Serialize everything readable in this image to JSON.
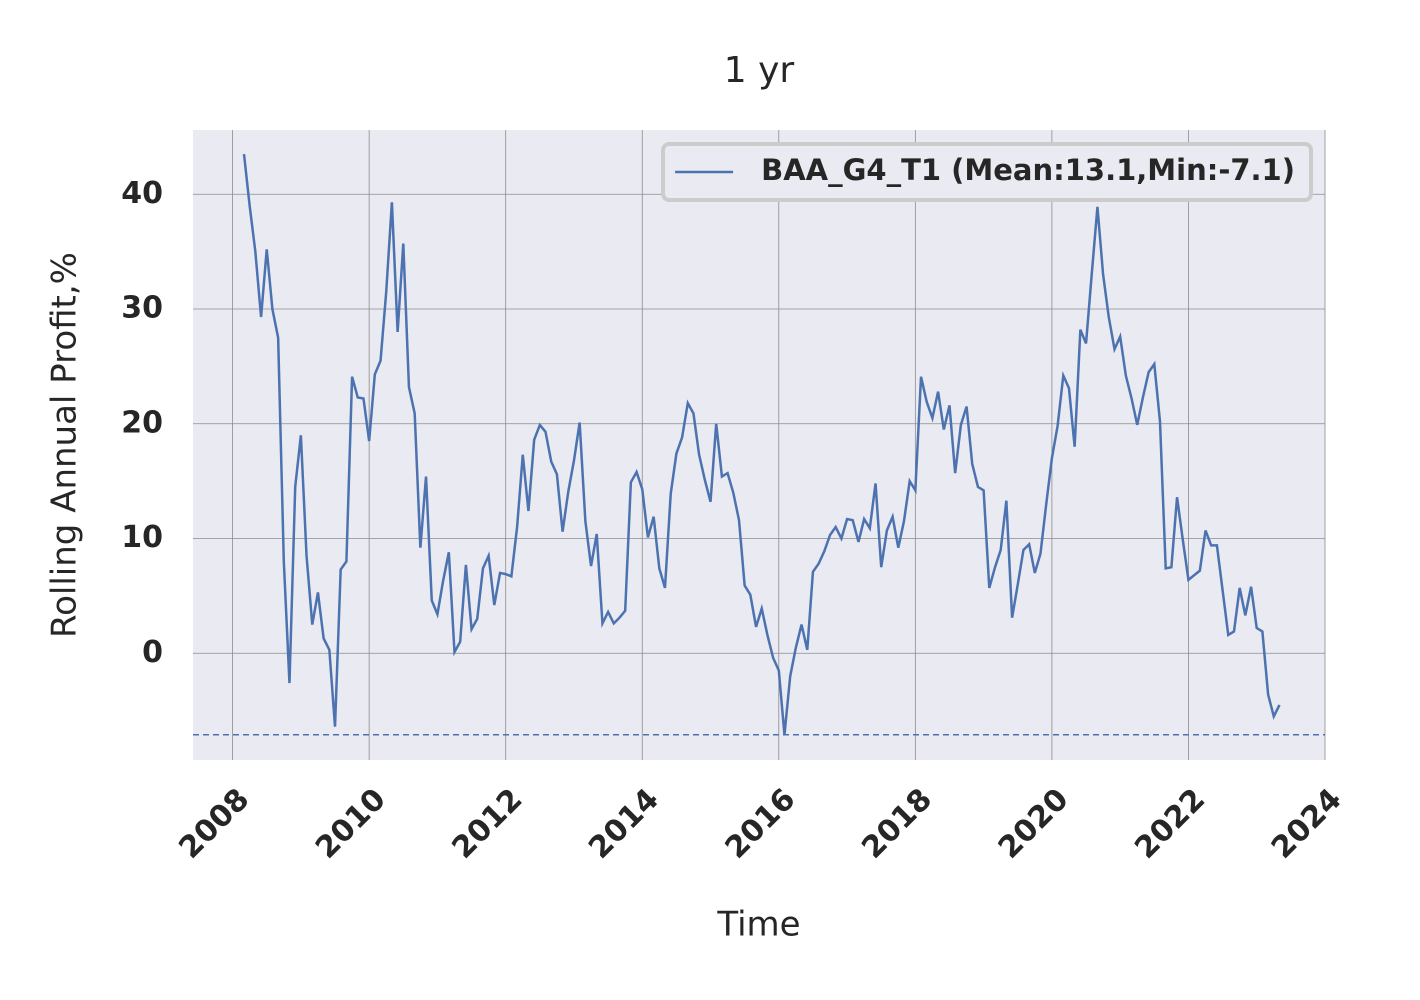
{
  "chart_data": {
    "type": "line",
    "title": "1 yr",
    "x_label": "Time",
    "y_label": "Rolling Annual Profit,%",
    "x": [
      2008.167,
      2008.25,
      2008.333,
      2008.417,
      2008.5,
      2008.583,
      2008.667,
      2008.75,
      2008.833,
      2008.917,
      2009,
      2009.083,
      2009.167,
      2009.25,
      2009.333,
      2009.417,
      2009.5,
      2009.583,
      2009.667,
      2009.75,
      2009.833,
      2009.917,
      2010,
      2010.083,
      2010.167,
      2010.25,
      2010.333,
      2010.417,
      2010.5,
      2010.583,
      2010.667,
      2010.75,
      2010.833,
      2010.917,
      2011,
      2011.083,
      2011.167,
      2011.25,
      2011.333,
      2011.417,
      2011.5,
      2011.583,
      2011.667,
      2011.75,
      2011.833,
      2011.917,
      2012,
      2012.083,
      2012.167,
      2012.25,
      2012.333,
      2012.417,
      2012.5,
      2012.583,
      2012.667,
      2012.75,
      2012.833,
      2012.917,
      2013,
      2013.083,
      2013.167,
      2013.25,
      2013.333,
      2013.417,
      2013.5,
      2013.583,
      2013.667,
      2013.75,
      2013.833,
      2013.917,
      2014,
      2014.083,
      2014.167,
      2014.25,
      2014.333,
      2014.417,
      2014.5,
      2014.583,
      2014.667,
      2014.75,
      2014.833,
      2014.917,
      2015,
      2015.083,
      2015.167,
      2015.25,
      2015.333,
      2015.417,
      2015.5,
      2015.583,
      2015.667,
      2015.75,
      2015.833,
      2015.917,
      2016,
      2016.083,
      2016.167,
      2016.25,
      2016.333,
      2016.417,
      2016.5,
      2016.583,
      2016.667,
      2016.75,
      2016.833,
      2016.917,
      2017,
      2017.083,
      2017.167,
      2017.25,
      2017.333,
      2017.417,
      2017.5,
      2017.583,
      2017.667,
      2017.75,
      2017.833,
      2017.917,
      2018,
      2018.083,
      2018.167,
      2018.25,
      2018.333,
      2018.417,
      2018.5,
      2018.583,
      2018.667,
      2018.75,
      2018.833,
      2018.917,
      2019,
      2019.083,
      2019.167,
      2019.25,
      2019.333,
      2019.417,
      2019.5,
      2019.583,
      2019.667,
      2019.75,
      2019.833,
      2019.917,
      2020,
      2020.083,
      2020.167,
      2020.25,
      2020.333,
      2020.417,
      2020.5,
      2020.583,
      2020.667,
      2020.75,
      2020.833,
      2020.917,
      2021,
      2021.083,
      2021.167,
      2021.25,
      2021.333,
      2021.417,
      2021.5,
      2021.583,
      2021.667,
      2021.75,
      2021.833,
      2021.917,
      2022,
      2022.083,
      2022.167,
      2022.25,
      2022.333,
      2022.417,
      2022.5,
      2022.583,
      2022.667,
      2022.75,
      2022.833,
      2022.917,
      2023,
      2023.083,
      2023.167,
      2023.25,
      2023.333
    ],
    "series": [
      {
        "name": "BAA_G4_T1 (Mean:13.1,Min:-7.1)",
        "color": "#4c72b0",
        "values": [
          43.5,
          39,
          35,
          29.3,
          35.2,
          30,
          27.5,
          8,
          -2.6,
          14.5,
          19,
          8.5,
          2.5,
          5.3,
          1.3,
          0.3,
          -6.4,
          7.3,
          8,
          24.1,
          22.3,
          22.2,
          18.5,
          24.3,
          25.5,
          31.5,
          39.3,
          28,
          35.7,
          23.2,
          20.9,
          9.2,
          15.4,
          4.6,
          3.4,
          6.3,
          8.8,
          0.1,
          1,
          7.7,
          2.1,
          3,
          7.4,
          8.5,
          4.2,
          7,
          6.9,
          6.7,
          11,
          17.3,
          12.4,
          18.6,
          19.9,
          19.3,
          16.7,
          15.6,
          10.6,
          14.1,
          16.8,
          20.1,
          11.5,
          7.6,
          10.4,
          2.6,
          3.6,
          2.6,
          3.1,
          3.7,
          14.9,
          15.8,
          14.3,
          10.1,
          11.9,
          7.4,
          5.7,
          13.9,
          17.4,
          18.8,
          21.8,
          20.9,
          17.3,
          15.1,
          13.2,
          20,
          15.4,
          15.7,
          14,
          11.6,
          5.9,
          5.1,
          2.3,
          3.9,
          1.6,
          -0.4,
          -1.5,
          -7.1,
          -2,
          0.5,
          2.5,
          0.3,
          7.1,
          7.8,
          8.9,
          10.3,
          11,
          10,
          11.7,
          11.6,
          9.7,
          11.7,
          10.9,
          14.8,
          7.5,
          10.7,
          11.9,
          9.2,
          11.5,
          15,
          14.2,
          24.1,
          21.9,
          20.5,
          22.8,
          19.5,
          21.6,
          15.7,
          19.9,
          21.5,
          16.5,
          14.5,
          14.2,
          5.7,
          7.5,
          9,
          13.3,
          3.1,
          6,
          9,
          9.5,
          7,
          8.7,
          13,
          17,
          19.8,
          24.2,
          23.1,
          18,
          28.2,
          27,
          33,
          38.9,
          33,
          29.3,
          26.5,
          27.6,
          24.2,
          22.2,
          19.9,
          22.3,
          24.5,
          25.2,
          20.2,
          7.4,
          7.5,
          13.6,
          9.9,
          6.4,
          6.8,
          7.2,
          10.7,
          9.4,
          9.4,
          5.5,
          1.6,
          1.9,
          5.7,
          3.3,
          5.8,
          2.2,
          1.9,
          -3.6,
          -5.5,
          -4.5
        ]
      }
    ],
    "hline": -7.1,
    "xlim": [
      2007.42,
      2024.0
    ],
    "xticks": [
      2008,
      2010,
      2012,
      2014,
      2016,
      2018,
      2020,
      2022,
      2024
    ],
    "ylim": [
      -9.3,
      45.6
    ],
    "yticks": [
      0,
      10,
      20,
      30,
      40
    ],
    "grid": true,
    "legend": "upper right"
  }
}
